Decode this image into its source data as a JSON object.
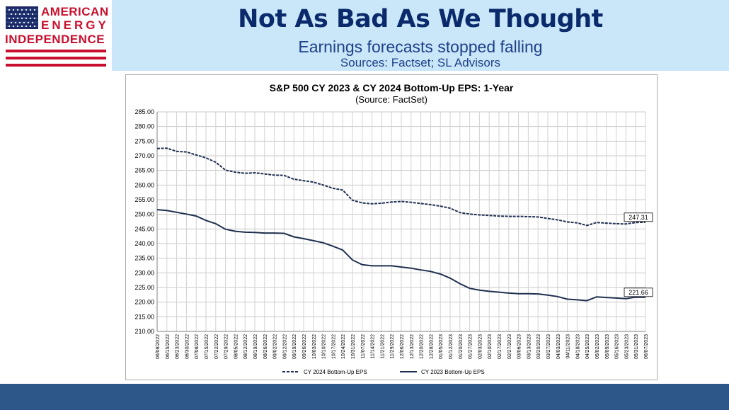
{
  "logo": {
    "line1": "AMERICAN",
    "line2": "ENERGY",
    "line3": "INDEPENDENCE",
    "colors": {
      "red": "#c8102e",
      "blue": "#0b2a6b"
    }
  },
  "slide": {
    "title": "Not As Bad As We Thought",
    "subtitle": "Earnings forecasts stopped falling",
    "sources": "Sources: Factset; SL Advisors"
  },
  "chart_data": {
    "type": "line",
    "title": "S&P 500 CY 2023 & CY 2024 Bottom-Up EPS: 1-Year",
    "subtitle": "(Source: FactSet)",
    "ylim": [
      210,
      285
    ],
    "y_ticks": [
      "210.00",
      "215.00",
      "220.00",
      "225.00",
      "230.00",
      "235.00",
      "240.00",
      "245.00",
      "250.00",
      "255.00",
      "260.00",
      "265.00",
      "270.00",
      "275.00",
      "280.00",
      "285.00"
    ],
    "grid": true,
    "legend_position": "bottom",
    "categories": [
      "06/08/2022",
      "06/15/2022",
      "06/23/2022",
      "06/30/2022",
      "07/08/2022",
      "07/15/2022",
      "07/22/2022",
      "07/29/2022",
      "08/05/2022",
      "08/12/2022",
      "08/19/2022",
      "08/26/2022",
      "09/02/2022",
      "09/12/2022",
      "09/19/2022",
      "09/26/2022",
      "10/03/2022",
      "10/10/2022",
      "10/17/2022",
      "10/24/2022",
      "10/31/2022",
      "11/07/2022",
      "11/14/2022",
      "11/21/2022",
      "11/29/2022",
      "12/06/2022",
      "12/13/2022",
      "12/20/2022",
      "12/28/2022",
      "01/05/2023",
      "01/12/2023",
      "01/20/2023",
      "01/27/2023",
      "02/03/2023",
      "02/10/2023",
      "02/17/2023",
      "02/27/2023",
      "03/06/2023",
      "03/13/2023",
      "03/20/2023",
      "03/27/2023",
      "04/03/2023",
      "04/11/2023",
      "04/18/2023",
      "04/25/2023",
      "05/02/2023",
      "05/09/2023",
      "05/16/2023",
      "05/23/2023",
      "05/31/2023",
      "06/07/2023"
    ],
    "series": [
      {
        "name": "CY 2024 Bottom-Up EPS",
        "style": "dashed",
        "color": "#1f2f4f",
        "end_label": "247.31",
        "values": [
          272.5,
          272.6,
          271.5,
          271.3,
          270.3,
          269.3,
          267.8,
          265.1,
          264.4,
          264.0,
          264.2,
          263.8,
          263.4,
          263.3,
          262.0,
          261.5,
          261.0,
          260.0,
          258.9,
          258.3,
          254.8,
          253.9,
          253.6,
          253.8,
          254.2,
          254.4,
          254.1,
          253.7,
          253.3,
          252.8,
          252.1,
          250.6,
          250.1,
          249.8,
          249.6,
          249.4,
          249.3,
          249.3,
          249.2,
          249.1,
          248.6,
          248.1,
          247.4,
          247.1,
          246.2,
          247.2,
          247.0,
          246.8,
          246.7,
          247.2,
          247.31
        ]
      },
      {
        "name": "CY 2023 Bottom-Up EPS",
        "style": "solid",
        "color": "#1f2f4f",
        "end_label": "221.66",
        "values": [
          251.6,
          251.3,
          250.7,
          250.1,
          249.4,
          247.9,
          246.8,
          244.9,
          244.2,
          243.9,
          243.8,
          243.6,
          243.6,
          243.5,
          242.3,
          241.7,
          241.0,
          240.3,
          239.1,
          237.8,
          234.4,
          232.8,
          232.4,
          232.4,
          232.4,
          232.0,
          231.6,
          231.0,
          230.5,
          229.6,
          228.2,
          226.3,
          224.7,
          224.1,
          223.7,
          223.4,
          223.1,
          222.9,
          222.9,
          222.8,
          222.4,
          221.9,
          221.0,
          220.8,
          220.5,
          221.8,
          221.6,
          221.4,
          221.2,
          221.7,
          221.66
        ]
      }
    ]
  }
}
